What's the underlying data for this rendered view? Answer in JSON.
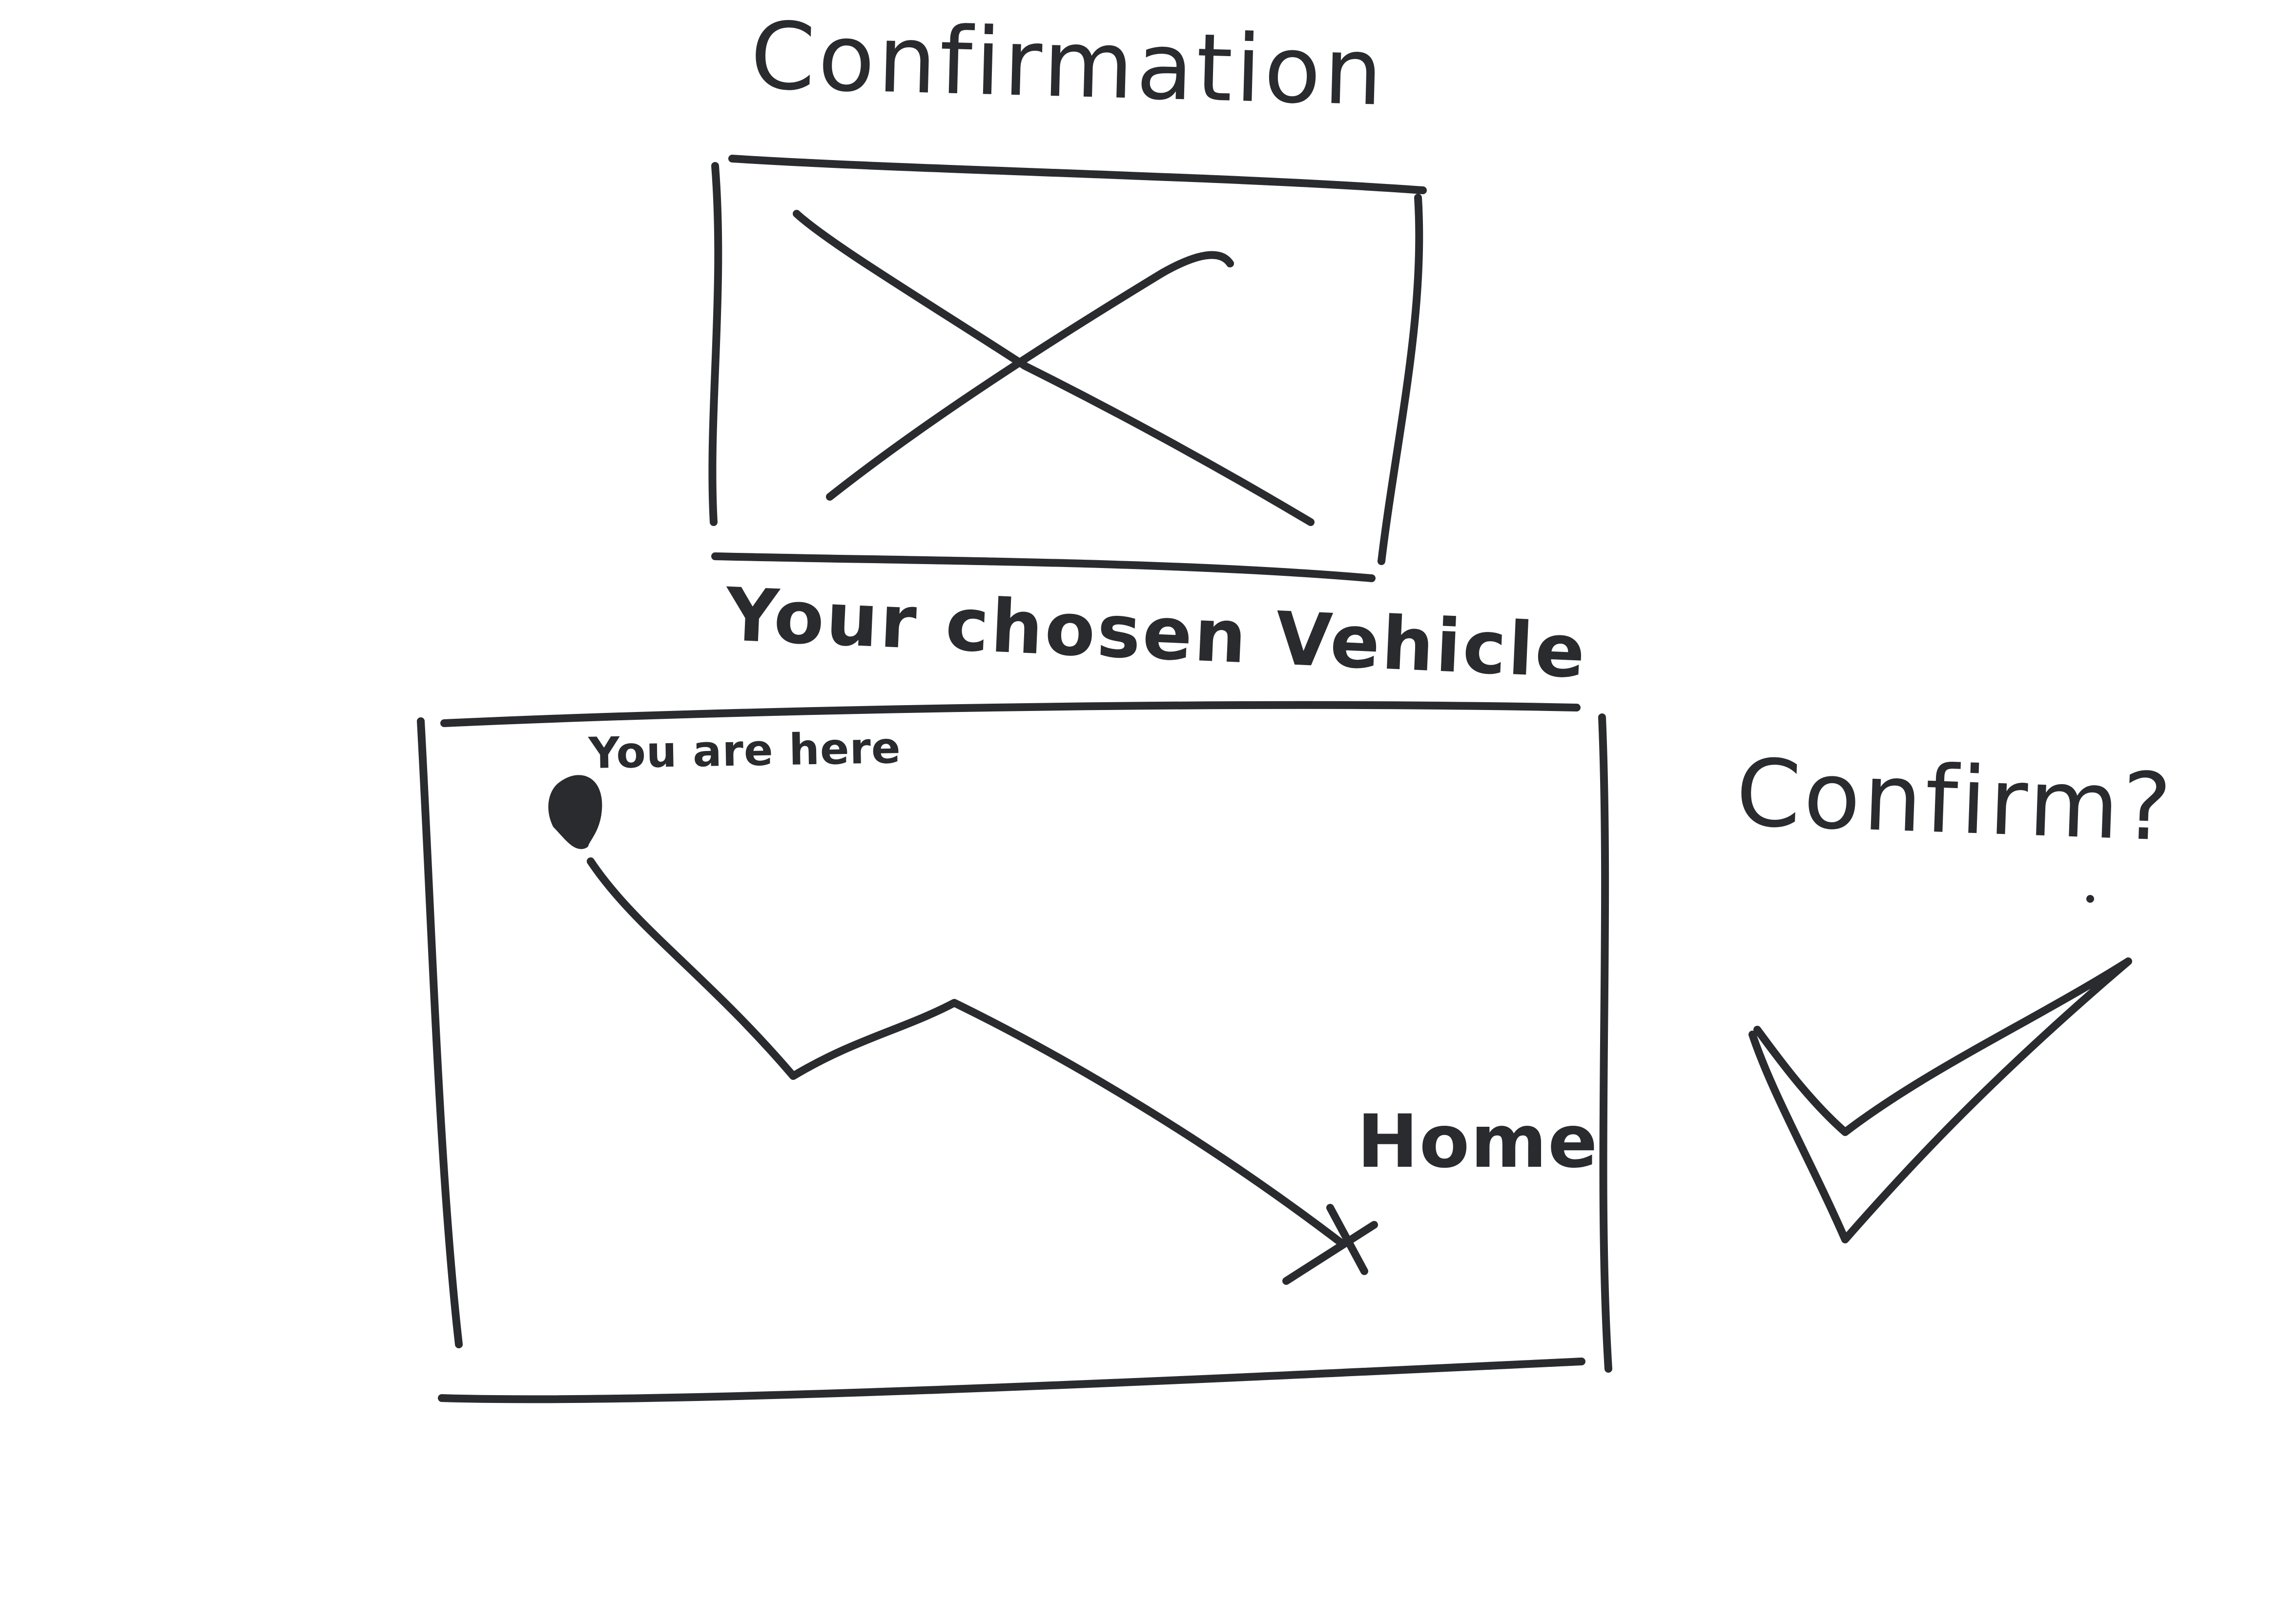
{
  "page": {
    "title": "Confirmation"
  },
  "vehicle_image": {
    "icon": "image-placeholder-icon"
  },
  "vehicle": {
    "caption": "Your chosen Vehicle"
  },
  "route_map": {
    "current_location_label": "You are here",
    "destination_label": "Home",
    "current_location_icon": "location-dot-icon",
    "destination_icon": "x-marker-icon"
  },
  "confirm": {
    "prompt": "Confirm?",
    "icon": "checkmark-icon"
  },
  "colors": {
    "ink": "#2a2b2f",
    "paper": "#ffffff"
  }
}
